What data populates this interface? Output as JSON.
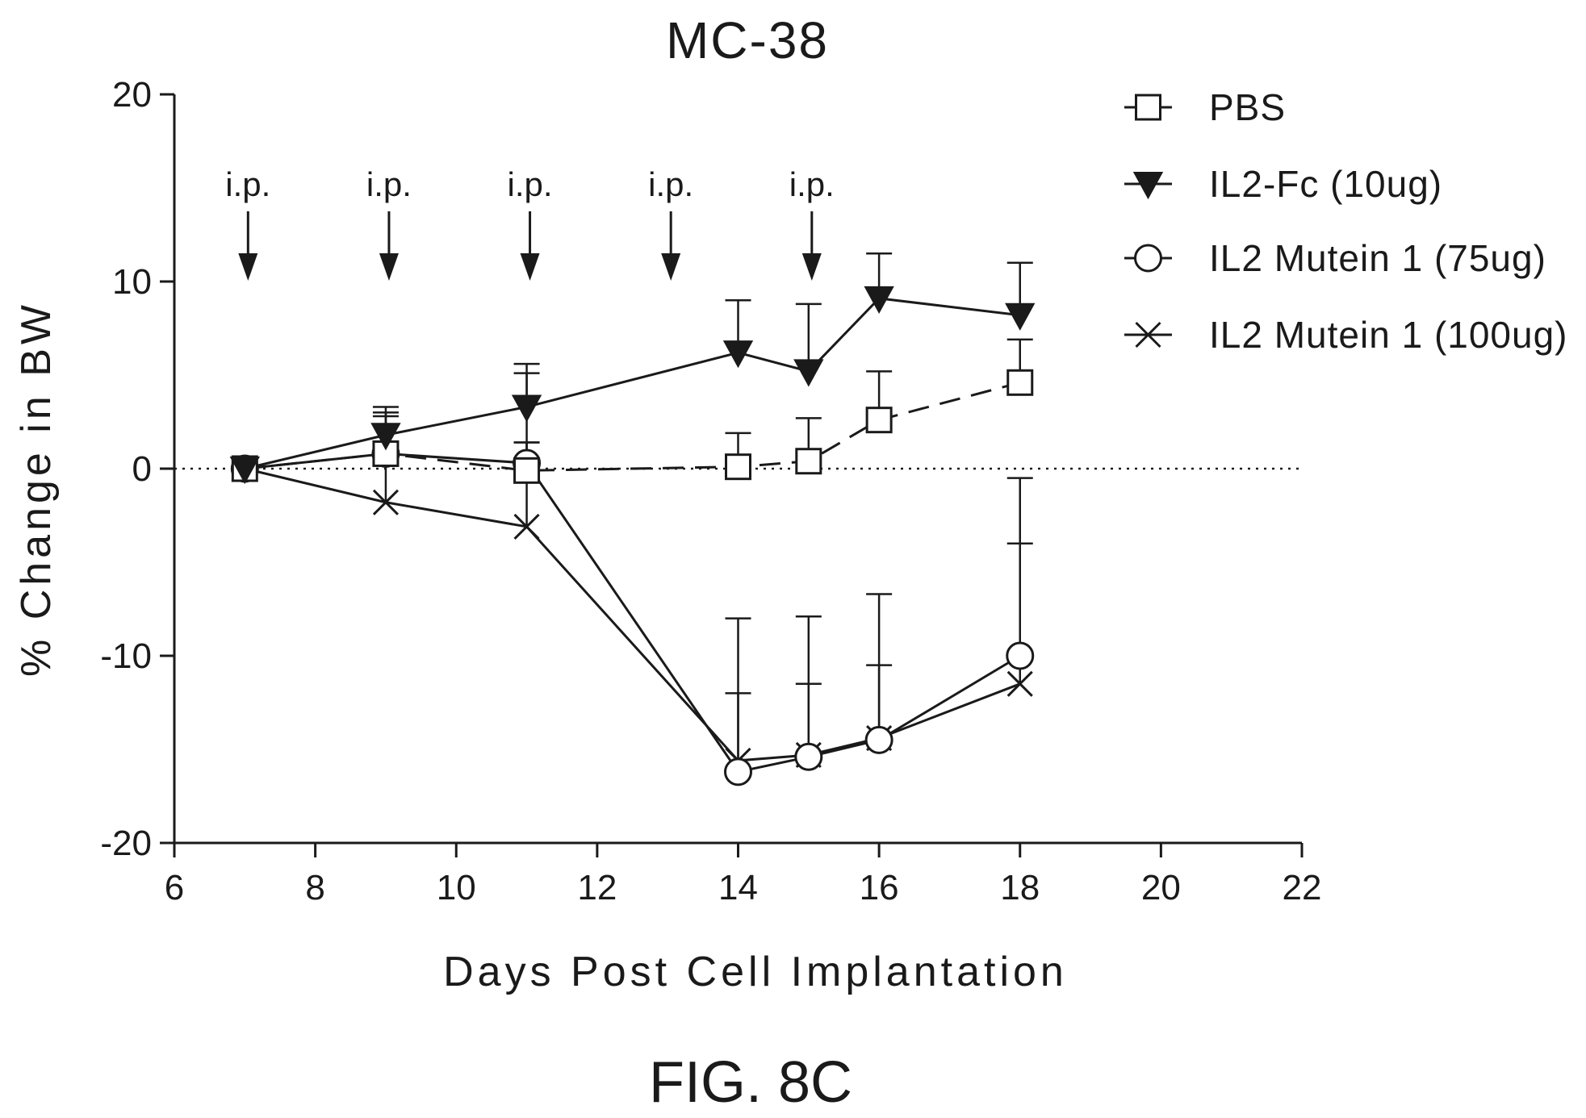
{
  "chart_data": {
    "type": "line",
    "title": "MC-38",
    "xlabel": "Days Post Cell Implantation",
    "ylabel": "% Change in BW",
    "xlim": [
      6,
      22
    ],
    "ylim": [
      -20,
      20
    ],
    "xticks": [
      6,
      8,
      10,
      12,
      14,
      16,
      18,
      20,
      22
    ],
    "yticks": [
      -20,
      -10,
      0,
      10,
      20
    ],
    "xtick_labels": [
      "6",
      "8",
      "10",
      "12",
      "14",
      "16",
      "18",
      "20",
      "22"
    ],
    "ytick_labels": [
      "-20",
      "-10",
      "0",
      "10",
      "20"
    ],
    "reference_line": {
      "y": 0,
      "style": "dotted"
    },
    "legend_position": "top-right",
    "grid": false,
    "dosing_annotation": {
      "label": "i.p.",
      "days": [
        7,
        9,
        11,
        13,
        15
      ]
    },
    "series": [
      {
        "name": "PBS",
        "marker": "open-square",
        "line": "dashed",
        "x": [
          7,
          9,
          11,
          14,
          15,
          16,
          18
        ],
        "y": [
          0,
          0.8,
          -0.1,
          0.1,
          0.4,
          2.6,
          4.6
        ],
        "error_upper": [
          null,
          1.3,
          1.4,
          1.9,
          2.7,
          5.2,
          6.9
        ]
      },
      {
        "name": "IL2-Fc (10ug)",
        "marker": "filled-triangle-down",
        "line": "solid",
        "x": [
          7,
          9,
          11,
          14,
          15,
          16,
          18
        ],
        "y": [
          0,
          1.8,
          3.3,
          6.2,
          5.2,
          9.1,
          8.2
        ],
        "error_upper": [
          null,
          3.3,
          5.6,
          9.0,
          8.8,
          11.5,
          11.0
        ]
      },
      {
        "name": "IL2 Mutein 1 (75ug)",
        "marker": "open-circle",
        "line": "solid",
        "x": [
          7,
          9,
          11,
          14,
          15,
          16,
          18
        ],
        "y": [
          0,
          0.8,
          0.3,
          -16.2,
          -15.4,
          -14.5,
          -10.0
        ],
        "error_upper": [
          null,
          2.8,
          1.4,
          -8.0,
          -7.9,
          -6.7,
          -0.5
        ]
      },
      {
        "name": "IL2 Mutein 1 (100ug)",
        "marker": "x",
        "line": "solid",
        "x": [
          7,
          9,
          11,
          14,
          15,
          16,
          18
        ],
        "y": [
          0,
          -1.8,
          -3.1,
          -15.6,
          -15.3,
          -14.4,
          -11.5
        ],
        "error_upper": [
          null,
          3.0,
          5.1,
          -12.0,
          -11.5,
          -10.5,
          -4.0
        ]
      }
    ]
  },
  "figure_label": "FIG. 8C"
}
